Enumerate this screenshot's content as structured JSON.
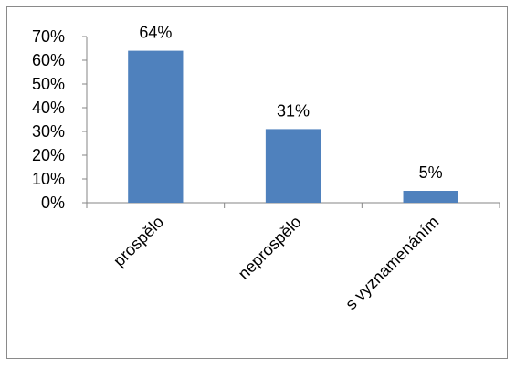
{
  "chart_data": {
    "type": "bar",
    "categories": [
      "prospělo",
      "neprospělo",
      "s vyznamenáním"
    ],
    "values": [
      64,
      31,
      5
    ],
    "data_labels": [
      "64%",
      "31%",
      "5%"
    ],
    "y_ticks": [
      "0%",
      "10%",
      "20%",
      "30%",
      "40%",
      "50%",
      "60%",
      "70%"
    ],
    "ylim": [
      0,
      70
    ],
    "bar_color": "#4f81bd",
    "grid": false,
    "legend": "none"
  }
}
